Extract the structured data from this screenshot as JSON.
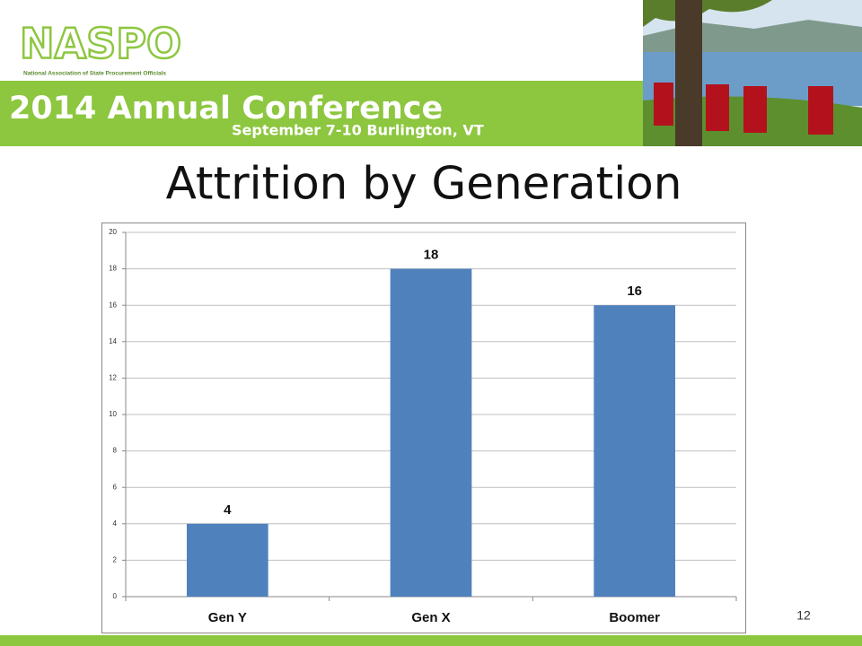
{
  "header": {
    "logo": "NASPO",
    "organization": "National Association of State Procurement Officials",
    "conference": "2014 Annual Conference",
    "dates": "September 7-10 Burlington, VT"
  },
  "chart_data": {
    "type": "bar",
    "title": "Attrition by Generation",
    "categories": [
      "Gen Y",
      "Gen X",
      "Boomer"
    ],
    "values": [
      4,
      18,
      16
    ],
    "color": "#4f81bd",
    "ylim": [
      0,
      20
    ],
    "yticks": [
      0,
      2,
      4,
      6,
      8,
      10,
      12,
      14,
      16,
      18,
      20
    ],
    "grid": true
  },
  "slide_number": 12
}
